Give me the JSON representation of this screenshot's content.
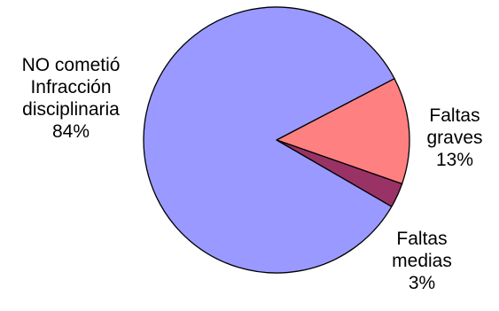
{
  "chart_data": {
    "type": "pie",
    "title": "",
    "slices": [
      {
        "label": [
          "NO cometió",
          "Infracción",
          "disciplinaria"
        ],
        "value": 84,
        "display": "84%",
        "color": "#9999ff"
      },
      {
        "label": [
          "Faltas",
          "graves"
        ],
        "value": 13,
        "display": "13%",
        "color": "#ff8080"
      },
      {
        "label": [
          "Faltas",
          "medias"
        ],
        "value": 3,
        "display": "3%",
        "color": "#993366"
      }
    ]
  }
}
